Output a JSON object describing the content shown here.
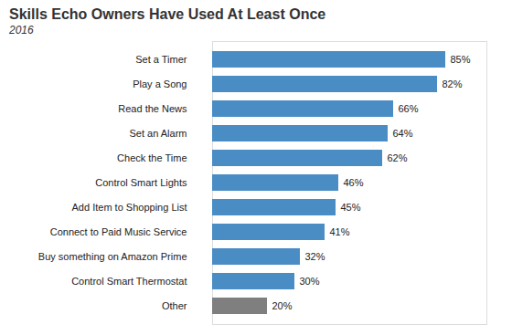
{
  "chart_data": {
    "type": "bar",
    "orientation": "horizontal",
    "title": "Skills Echo Owners Have Used At Least Once",
    "subtitle": "2016",
    "categories": [
      "Set a Timer",
      "Play a Song",
      "Read the News",
      "Set an Alarm",
      "Check the Time",
      "Control Smart Lights",
      "Add Item to Shopping List",
      "Connect to Paid Music Service",
      "Buy something on Amazon Prime",
      "Control Smart Thermostat",
      "Other"
    ],
    "values": [
      85,
      82,
      66,
      64,
      62,
      46,
      45,
      41,
      32,
      30,
      20
    ],
    "value_labels": [
      "85%",
      "82%",
      "66%",
      "64%",
      "62%",
      "46%",
      "45%",
      "41%",
      "32%",
      "30%",
      "20%"
    ],
    "colors": [
      "#4a8cc4",
      "#4a8cc4",
      "#4a8cc4",
      "#4a8cc4",
      "#4a8cc4",
      "#4a8cc4",
      "#4a8cc4",
      "#4a8cc4",
      "#4a8cc4",
      "#4a8cc4",
      "#7f7f7f"
    ],
    "xlim": [
      0,
      100
    ],
    "data_labels": true,
    "tick_labels": "y",
    "grid": false
  }
}
